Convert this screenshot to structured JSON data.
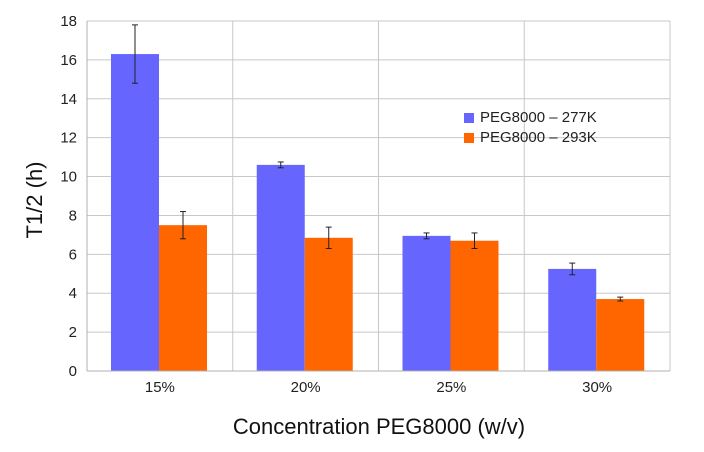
{
  "chart_data": {
    "type": "bar",
    "title": "",
    "xlabel": "Concentration PEG8000 (w/v)",
    "ylabel": "T1/2 (h)",
    "ylim": [
      0,
      18
    ],
    "yticks": [
      0,
      2,
      4,
      6,
      8,
      10,
      12,
      14,
      16,
      18
    ],
    "grid": true,
    "legend_position": "right-upper",
    "categories": [
      "15%",
      "20%",
      "25%",
      "30%"
    ],
    "series": [
      {
        "name": "PEG8000 – 277K",
        "color": "#6666ff",
        "values": [
          16.3,
          10.6,
          6.95,
          5.25
        ],
        "errors": [
          1.5,
          0.15,
          0.15,
          0.3
        ]
      },
      {
        "name": "PEG8000 – 293K",
        "color": "#ff6600",
        "values": [
          7.5,
          6.85,
          6.7,
          3.7
        ],
        "errors": [
          0.7,
          0.55,
          0.4,
          0.1
        ]
      }
    ]
  }
}
